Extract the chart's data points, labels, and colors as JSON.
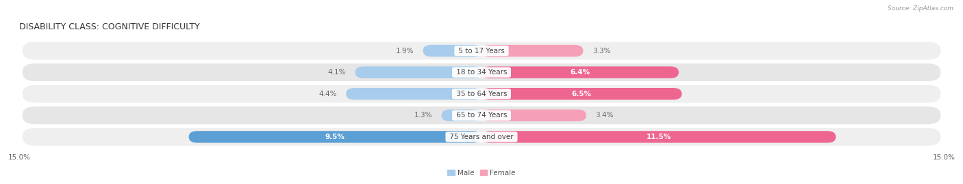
{
  "title": "DISABILITY CLASS: COGNITIVE DIFFICULTY",
  "source": "Source: ZipAtlas.com",
  "categories": [
    "5 to 17 Years",
    "18 to 34 Years",
    "35 to 64 Years",
    "65 to 74 Years",
    "75 Years and over"
  ],
  "male_values": [
    1.9,
    4.1,
    4.4,
    1.3,
    9.5
  ],
  "female_values": [
    3.3,
    6.4,
    6.5,
    3.4,
    11.5
  ],
  "xlim": 15.0,
  "male_color_light": "#A8CCEC",
  "male_color_dark": "#5B9FD4",
  "female_color_light": "#F5A0B8",
  "female_color_dark": "#EE6690",
  "bg_color": "#FFFFFF",
  "row_color_odd": "#EFEFEF",
  "row_color_even": "#E6E6E6",
  "row_sep_color": "#FFFFFF",
  "label_color_inner": "white",
  "label_color_outer": "#666666",
  "cat_label_color": "#444444",
  "bar_height": 0.55,
  "title_fontsize": 9,
  "label_fontsize": 7.5,
  "axis_fontsize": 7.5,
  "threshold": 5.0
}
